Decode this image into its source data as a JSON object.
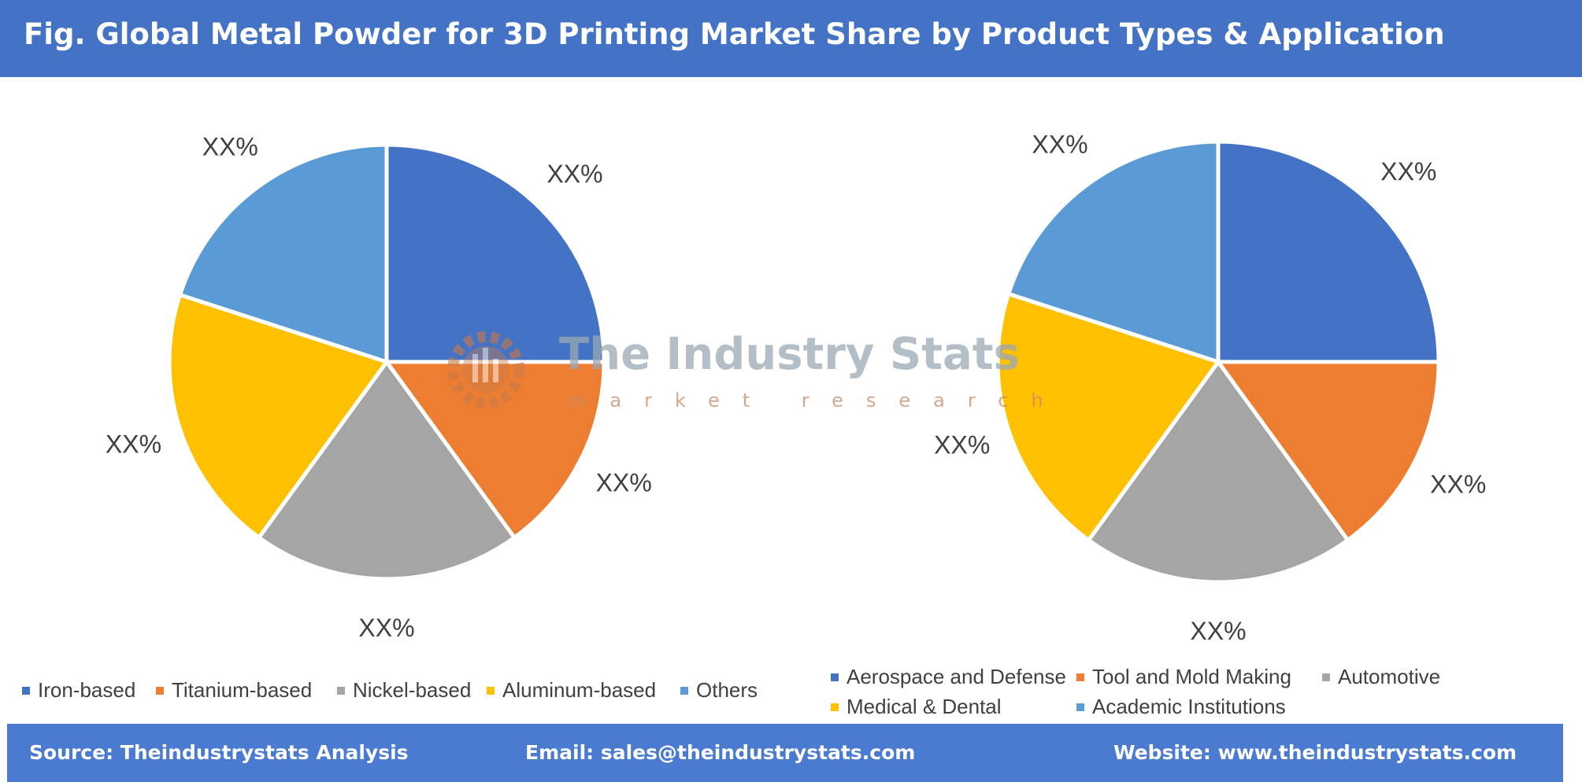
{
  "header": {
    "title": "Fig. Global Metal Powder for 3D Printing Market Share by Product Types & Application"
  },
  "watermark": {
    "title": "The Industry Stats",
    "subtitle": "market research"
  },
  "colors": {
    "header_bg": "#4472c4",
    "footer_bg": "#4a7bd0",
    "series": [
      "#4472c4",
      "#ed7d31",
      "#a5a5a5",
      "#ffc000",
      "#5b9bd5"
    ]
  },
  "chart_data": [
    {
      "type": "pie",
      "title": "",
      "categories": [
        "Iron-based",
        "Titanium-based",
        "Nickel-based",
        "Aluminum-based",
        "Others"
      ],
      "values": [
        25,
        15,
        20,
        20,
        20
      ],
      "data_labels": [
        "XX%",
        "XX%",
        "XX%",
        "XX%",
        "XX%"
      ],
      "legend_position": "bottom"
    },
    {
      "type": "pie",
      "title": "",
      "categories": [
        "Aerospace and Defense",
        "Tool and Mold Making",
        "Automotive",
        "Medical & Dental",
        "Academic Institutions"
      ],
      "values": [
        25,
        15,
        20,
        20,
        20
      ],
      "data_labels": [
        "XX%",
        "XX%",
        "XX%",
        "XX%",
        "XX%"
      ],
      "legend_position": "bottom"
    }
  ],
  "footer": {
    "source": "Source: Theindustrystats Analysis",
    "email": "Email: sales@theindustrystats.com",
    "website": "Website: www.theindustrystats.com"
  }
}
